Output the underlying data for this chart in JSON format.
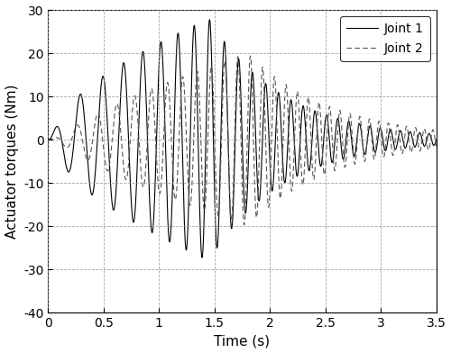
{
  "title": "",
  "xlabel": "Time (s)",
  "ylabel": "Actuator torques (Nm)",
  "xlim": [
    0,
    3.5
  ],
  "ylim": [
    -40,
    30
  ],
  "xticks": [
    0,
    0.5,
    1.0,
    1.5,
    2.0,
    2.5,
    3.0,
    3.5
  ],
  "yticks": [
    -40,
    -30,
    -20,
    -10,
    0,
    10,
    20,
    30
  ],
  "grid_color": "#888888",
  "line1_color": "#000000",
  "line2_color": "#555555",
  "legend_labels": [
    "Joint 1",
    "Joint 2"
  ],
  "figsize": [
    5.0,
    3.92
  ],
  "dpi": 100
}
